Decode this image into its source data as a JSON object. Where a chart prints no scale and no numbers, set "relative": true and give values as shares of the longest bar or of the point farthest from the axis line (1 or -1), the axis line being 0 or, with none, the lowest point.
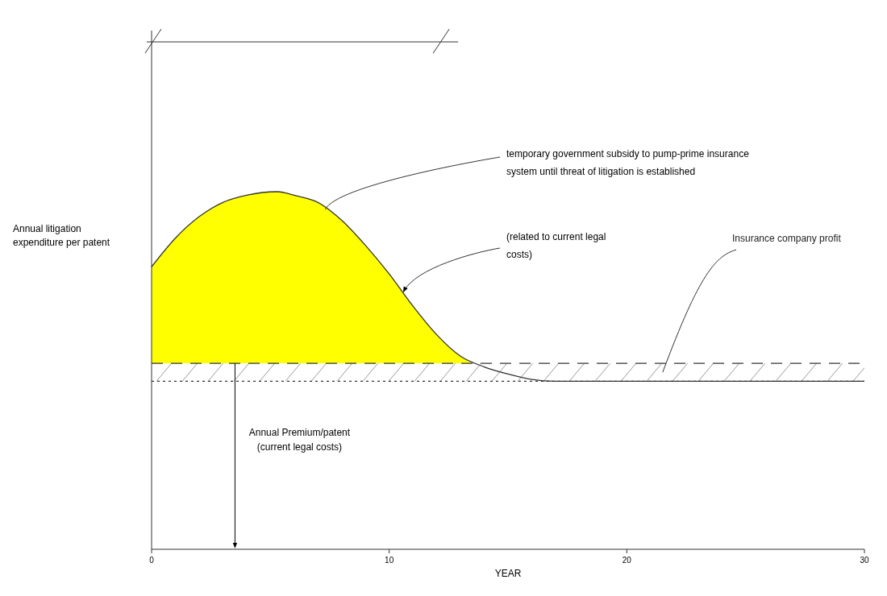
{
  "chart_data": {
    "type": "line",
    "relative": true,
    "xlabel": "YEAR",
    "ylabel": "Annual litigation expenditure per patent",
    "xlim": [
      0,
      30
    ],
    "xticks": [
      0,
      10,
      20,
      30
    ],
    "tick_labels": "x",
    "grid": false,
    "series": [
      {
        "type": "area",
        "color": "#ffff00",
        "x": [
          0,
          1,
          2,
          3,
          4,
          5.3,
          6,
          7,
          8,
          9,
          10,
          11,
          12,
          13,
          13.5
        ],
        "values": [
          0.79,
          0.87,
          0.93,
          0.97,
          0.99,
          1.0,
          0.99,
          0.97,
          0.92,
          0.85,
          0.77,
          0.68,
          0.6,
          0.54,
          0.52
        ]
      },
      {
        "color": "#333333",
        "x": [
          0,
          1,
          2,
          3,
          4,
          5.3,
          6,
          7,
          8,
          9,
          10,
          11,
          12,
          13,
          14,
          15,
          16,
          17,
          18,
          30
        ],
        "values": [
          0.79,
          0.87,
          0.93,
          0.97,
          0.99,
          1.0,
          0.99,
          0.97,
          0.92,
          0.85,
          0.77,
          0.68,
          0.6,
          0.54,
          0.51,
          0.49,
          0.475,
          0.47,
          0.47,
          0.47
        ]
      }
    ],
    "ref_lines": [
      {
        "axis": "y",
        "value": 0.52,
        "line_style": "dashed",
        "color": "#333333"
      },
      {
        "axis": "y",
        "value": 0.47,
        "line_style": "dotted",
        "color": "#333333"
      }
    ],
    "bands": [
      {
        "axis": "y",
        "from": 0.47,
        "to": 0.52,
        "label": "Insurance company profit",
        "color": "#333333"
      }
    ],
    "annotations": [
      {
        "text": "temporary government subsidy to pump-prime insurance system until threat of litigation is established",
        "x": 7.3,
        "y": 0.95
      },
      {
        "text": "(related to current legal costs)",
        "x": 10.6,
        "y": 0.72
      },
      "Annual Premium/patent (current legal costs)"
    ]
  }
}
